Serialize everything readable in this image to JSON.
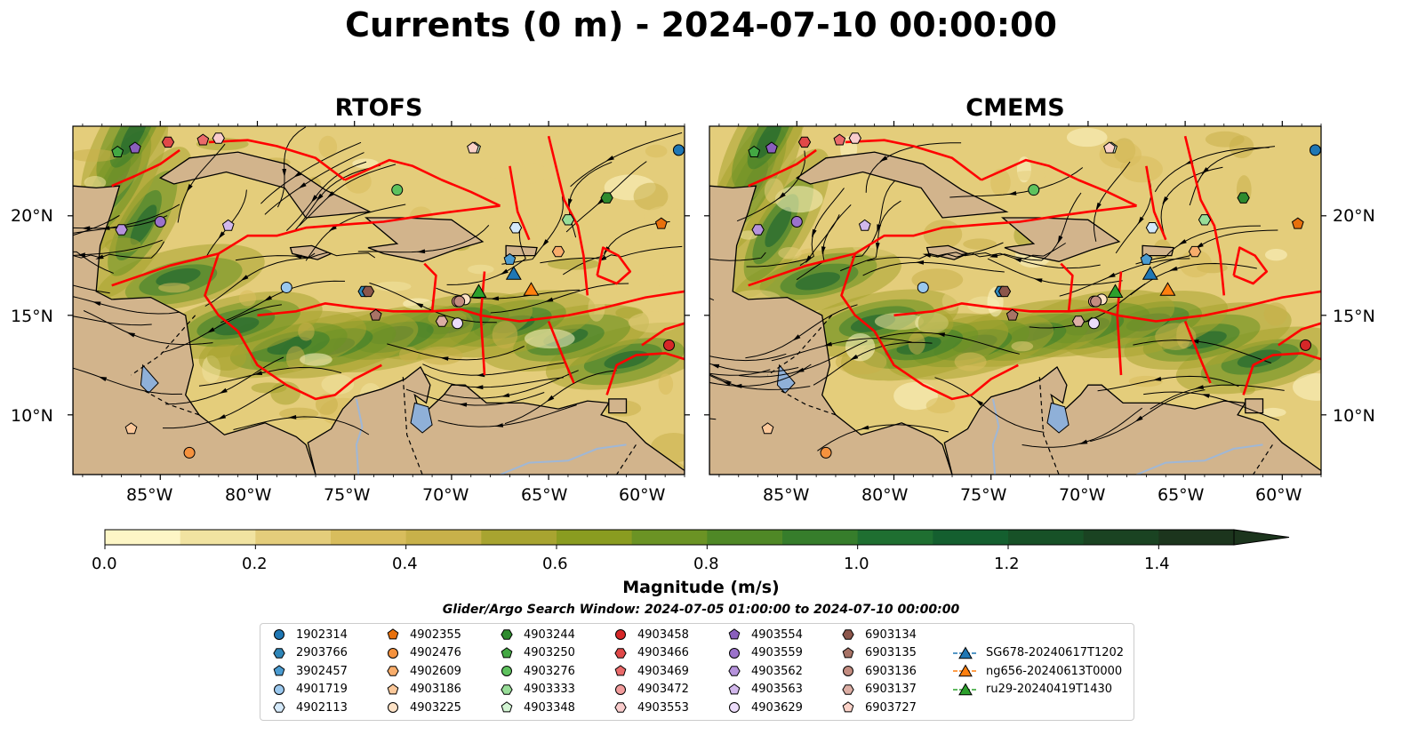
{
  "title": "Currents (0 m) - 2024-07-10 00:00:00",
  "panels": [
    {
      "title": "RTOFS"
    },
    {
      "title": "CMEMS"
    }
  ],
  "lat_ticks": [
    "20°N",
    "15°N",
    "10°N"
  ],
  "lon_ticks": [
    "85°W",
    "80°W",
    "75°W",
    "70°W",
    "65°W",
    "60°W"
  ],
  "colorbar": {
    "label": "Magnitude (m/s)",
    "ticks": [
      "0.0",
      "0.2",
      "0.4",
      "0.6",
      "0.8",
      "1.0",
      "1.2",
      "1.4"
    ],
    "levels": [
      0.0,
      0.1,
      0.2,
      0.3,
      0.4,
      0.5,
      0.6,
      0.7,
      0.8,
      0.9,
      1.0,
      1.1,
      1.2,
      1.3,
      1.4,
      1.5
    ],
    "colors": [
      "#fdf6c6",
      "#f1e3a1",
      "#e4cd7b",
      "#d8bd5d",
      "#c8b14a",
      "#a8a430",
      "#8a9c20",
      "#6b9324",
      "#4f8826",
      "#367d2b",
      "#1f6f31",
      "#145f2f",
      "#175127",
      "#1a4322",
      "#1c351d"
    ],
    "extend": "max"
  },
  "search_window": "Glider/Argo Search Window: 2024-07-05 01:00:00 to 2024-07-10 00:00:00",
  "chart_data": {
    "type": "map",
    "field": "surface current magnitude with streamlines",
    "lon_range": [
      -89.5,
      -58.0
    ],
    "lat_range": [
      7.0,
      24.5
    ],
    "units": "m/s",
    "colors": {
      "land": "#d2b48c",
      "lakes": "#8fb0d8",
      "eez_boundaries": "#ff0000",
      "streamlines": "#000000"
    },
    "legend": [
      {
        "name": "1902314",
        "marker": "circle",
        "color": "#1f77b4"
      },
      {
        "name": "2903766",
        "marker": "hexagon",
        "color": "#2f86b8"
      },
      {
        "name": "3902457",
        "marker": "pentagon",
        "color": "#4a9bd0"
      },
      {
        "name": "4901719",
        "marker": "circle",
        "color": "#9ac8ee"
      },
      {
        "name": "4902113",
        "marker": "hexagon",
        "color": "#d4e9fa"
      },
      {
        "name": "4902355",
        "marker": "pentagon",
        "color": "#e8700c"
      },
      {
        "name": "4902476",
        "marker": "circle",
        "color": "#f5923e"
      },
      {
        "name": "4902609",
        "marker": "hexagon",
        "color": "#f8ad6b"
      },
      {
        "name": "4903186",
        "marker": "pentagon",
        "color": "#fbc89a"
      },
      {
        "name": "4903225",
        "marker": "circle",
        "color": "#fde2c6"
      },
      {
        "name": "4903244",
        "marker": "hexagon",
        "color": "#2e8b2e"
      },
      {
        "name": "4903250",
        "marker": "pentagon",
        "color": "#43a843"
      },
      {
        "name": "4903276",
        "marker": "circle",
        "color": "#5ec25e"
      },
      {
        "name": "4903333",
        "marker": "hexagon",
        "color": "#98dd98"
      },
      {
        "name": "4903348",
        "marker": "pentagon",
        "color": "#d3f5d3"
      },
      {
        "name": "4903458",
        "marker": "circle",
        "color": "#d62728"
      },
      {
        "name": "4903466",
        "marker": "hexagon",
        "color": "#e04848"
      },
      {
        "name": "4903469",
        "marker": "pentagon",
        "color": "#ea6a6a"
      },
      {
        "name": "4903472",
        "marker": "circle",
        "color": "#f29c9c"
      },
      {
        "name": "4903553",
        "marker": "hexagon",
        "color": "#f9cccc"
      },
      {
        "name": "4903554",
        "marker": "pentagon",
        "color": "#8a5fbd"
      },
      {
        "name": "4903559",
        "marker": "circle",
        "color": "#9b72cb"
      },
      {
        "name": "4903562",
        "marker": "hexagon",
        "color": "#b693dc"
      },
      {
        "name": "4903563",
        "marker": "pentagon",
        "color": "#d2b8ec"
      },
      {
        "name": "4903629",
        "marker": "circle",
        "color": "#ecdcfa"
      },
      {
        "name": "6903134",
        "marker": "hexagon",
        "color": "#8c564b"
      },
      {
        "name": "6903135",
        "marker": "pentagon",
        "color": "#a87366"
      },
      {
        "name": "6903136",
        "marker": "circle",
        "color": "#c38c80"
      },
      {
        "name": "6903137",
        "marker": "hexagon",
        "color": "#dcaea4"
      },
      {
        "name": "6903727",
        "marker": "pentagon",
        "color": "#fbd2c8"
      },
      {
        "name": "SG678-20240617T1202",
        "marker": "triangle",
        "color": "#1f77b4"
      },
      {
        "name": "ng656-20240613T0000",
        "marker": "triangle",
        "color": "#ff7f0e"
      },
      {
        "name": "ru29-20240419T1430",
        "marker": "triangle",
        "color": "#2ca02c"
      }
    ],
    "observations": [
      {
        "id": "1902314",
        "lon": -58.3,
        "lat": 23.3
      },
      {
        "id": "2903766",
        "lon": -74.5,
        "lat": 16.2
      },
      {
        "id": "3902457",
        "lon": -67.0,
        "lat": 17.8
      },
      {
        "id": "4901719",
        "lon": -78.5,
        "lat": 16.4
      },
      {
        "id": "4902113",
        "lon": -66.7,
        "lat": 19.4
      },
      {
        "id": "4902355",
        "lon": -59.2,
        "lat": 19.6
      },
      {
        "id": "4902476",
        "lon": -83.5,
        "lat": 8.1
      },
      {
        "id": "4902609",
        "lon": -64.5,
        "lat": 18.2
      },
      {
        "id": "4903186",
        "lon": -86.5,
        "lat": 9.3
      },
      {
        "id": "4903225",
        "lon": -69.3,
        "lat": 15.8
      },
      {
        "id": "4903244",
        "lon": -62.0,
        "lat": 20.9
      },
      {
        "id": "4903250",
        "lon": -87.2,
        "lat": 23.2
      },
      {
        "id": "4903276",
        "lon": -72.8,
        "lat": 21.3
      },
      {
        "id": "4903333",
        "lon": -64.0,
        "lat": 19.8
      },
      {
        "id": "4903348",
        "lon": -68.8,
        "lat": 23.4
      },
      {
        "id": "4903458",
        "lon": -58.8,
        "lat": 13.5
      },
      {
        "id": "4903466",
        "lon": -84.6,
        "lat": 23.7
      },
      {
        "id": "4903469",
        "lon": -82.8,
        "lat": 23.8
      },
      {
        "id": "4903472",
        "lon": -69.7,
        "lat": 15.7
      },
      {
        "id": "4903553",
        "lon": -82.0,
        "lat": 23.9
      },
      {
        "id": "4903554",
        "lon": -86.3,
        "lat": 23.4
      },
      {
        "id": "4903559",
        "lon": -85.0,
        "lat": 19.7
      },
      {
        "id": "4903562",
        "lon": -87.0,
        "lat": 19.3
      },
      {
        "id": "4903563",
        "lon": -81.5,
        "lat": 19.5
      },
      {
        "id": "4903629",
        "lon": -69.7,
        "lat": 14.6
      },
      {
        "id": "6903134",
        "lon": -74.3,
        "lat": 16.2
      },
      {
        "id": "6903135",
        "lon": -73.9,
        "lat": 15.0
      },
      {
        "id": "6903136",
        "lon": -69.6,
        "lat": 15.7
      },
      {
        "id": "6903137",
        "lon": -70.5,
        "lat": 14.7
      },
      {
        "id": "6903727",
        "lon": -68.9,
        "lat": 23.4
      },
      {
        "id": "SG678-20240617T1202",
        "lon": -66.8,
        "lat": 17.1
      },
      {
        "id": "ng656-20240613T0000",
        "lon": -65.9,
        "lat": 16.3
      },
      {
        "id": "ru29-20240419T1430",
        "lon": -68.6,
        "lat": 16.2
      }
    ]
  }
}
